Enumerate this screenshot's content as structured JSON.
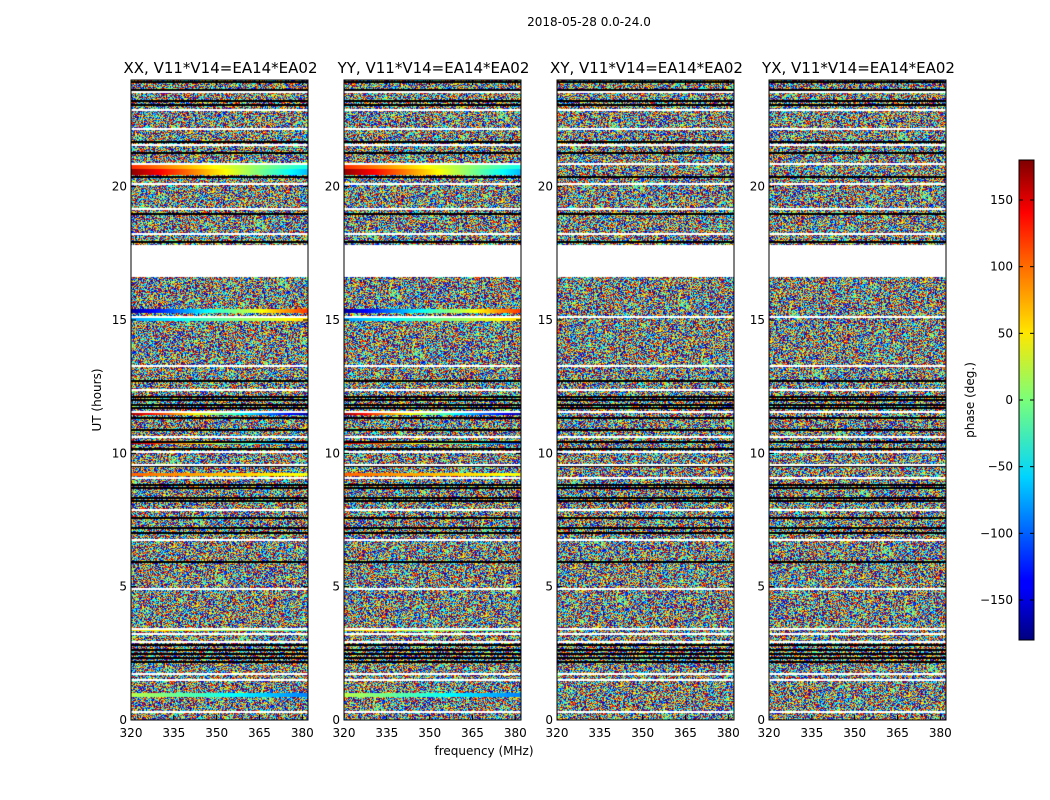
{
  "chart_data": {
    "type": "heatmap",
    "title": "2018-05-28 0.0-24.0",
    "xlabel": "frequency (MHz)",
    "ylabel": "UT (hours)",
    "xlim": [
      320,
      382
    ],
    "ylim": [
      0,
      24
    ],
    "x_ticks": [
      "320",
      "335",
      "350",
      "365",
      "380"
    ],
    "x_tick_values": [
      320,
      335,
      350,
      365,
      380
    ],
    "y_ticks": [
      "0",
      "5",
      "10",
      "15",
      "20"
    ],
    "y_tick_values": [
      0,
      5,
      10,
      15,
      20
    ],
    "colorbar": {
      "label": "phase (deg.)",
      "range": [
        -180,
        180
      ],
      "ticks": [
        "150",
        "100",
        "50",
        "0",
        "−50",
        "−100",
        "−150"
      ],
      "tick_values": [
        150,
        100,
        50,
        0,
        -50,
        -100,
        -150
      ],
      "colormap": "jet"
    },
    "panels": [
      {
        "title": "XX, V11*V14=EA14*EA02",
        "coherent_phase": true
      },
      {
        "title": "YY, V11*V14=EA14*EA02",
        "coherent_phase": true
      },
      {
        "title": "XY, V11*V14=EA14*EA02",
        "coherent_phase": false
      },
      {
        "title": "YX, V11*V14=EA14*EA02",
        "coherent_phase": false
      }
    ],
    "flagged_gaps_hours": [
      [
        16.6,
        17.8
      ]
    ],
    "white_gap_rows_hours": [
      0.35,
      1.55,
      1.75,
      2.95,
      3.25,
      3.45,
      4.95,
      6.8,
      7.9,
      9.1,
      9.6,
      10.1,
      10.65,
      11.6,
      12.4,
      13.3,
      15.15,
      16.8,
      17.0,
      17.45,
      17.75,
      18.25,
      19.2,
      20.15,
      20.9,
      21.6,
      22.2,
      22.9,
      23.6
    ],
    "black_flag_rows_hours": [
      2.2,
      2.35,
      2.5,
      2.65,
      2.85,
      5.95,
      7.05,
      7.25,
      7.6,
      8.25,
      8.35,
      8.75,
      8.85,
      9.55,
      10.2,
      10.45,
      10.65,
      10.9,
      11.35,
      11.75,
      11.85,
      12.05,
      12.15,
      12.75,
      17.6,
      17.95,
      19.0,
      20.4,
      21.3,
      21.7,
      23.1,
      23.25,
      23.65,
      23.95
    ],
    "coherent_bands": [
      {
        "t0": 20.45,
        "t1": 20.65,
        "phase_start": 175,
        "phase_end": -70
      },
      {
        "t0": 20.65,
        "t1": 20.85,
        "phase_start": 120,
        "phase_end": -40
      },
      {
        "t0": 15.25,
        "t1": 15.4,
        "phase_start": -170,
        "phase_end": 120
      },
      {
        "t0": 14.95,
        "t1": 15.1,
        "phase_start": -80,
        "phase_end": 60
      },
      {
        "t0": 11.45,
        "t1": 11.55,
        "phase_start": 170,
        "phase_end": -170
      },
      {
        "t0": 10.35,
        "t1": 10.45,
        "phase_start": 160,
        "phase_end": -120
      },
      {
        "t0": 9.15,
        "t1": 9.25,
        "phase_start": 100,
        "phase_end": 40
      },
      {
        "t0": 3.35,
        "t1": 3.45,
        "phase_start": 60,
        "phase_end": -20
      },
      {
        "t0": 0.85,
        "t1": 1.0,
        "phase_start": 20,
        "phase_end": -90
      }
    ]
  }
}
